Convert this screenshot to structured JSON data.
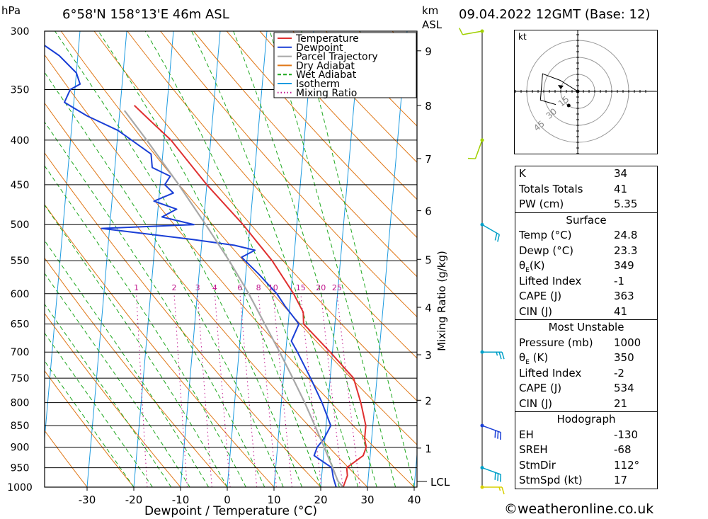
{
  "header": {
    "location": "6°58'N  158°13'E  46m  ASL",
    "datetime": "09.04.2022  12GMT  (Base: 12)",
    "hpa_label": "hPa",
    "km_label": "km",
    "asl_label": "ASL"
  },
  "chart_data": {
    "type": "line",
    "subtype": "skew-T log-P",
    "xlabel": "Dewpoint / Temperature (°C)",
    "ylabel": "hPa",
    "right_ylabel": "Mixing Ratio (g/kg)",
    "xlim": [
      -40,
      40
    ],
    "ylim": [
      1000,
      300
    ],
    "x_ticks": [
      "-30",
      "-20",
      "-10",
      "0",
      "10",
      "20",
      "30",
      "40"
    ],
    "pressure_ticks": [
      "300",
      "350",
      "400",
      "450",
      "500",
      "550",
      "600",
      "650",
      "700",
      "750",
      "800",
      "850",
      "900",
      "950",
      "1000"
    ],
    "km_ticks": [
      {
        "label": "1",
        "p": 902
      },
      {
        "label": "2",
        "p": 795
      },
      {
        "label": "3",
        "p": 705
      },
      {
        "label": "4",
        "p": 622
      },
      {
        "label": "5",
        "p": 548
      },
      {
        "label": "6",
        "p": 482
      },
      {
        "label": "7",
        "p": 420
      },
      {
        "label": "8",
        "p": 365
      },
      {
        "label": "9",
        "p": 316
      }
    ],
    "lcl": {
      "label": "LCL",
      "p": 985
    },
    "mixing_ratio_labels": [
      "1",
      "2",
      "3",
      "4",
      "6",
      "8",
      "10",
      "15",
      "20",
      "25"
    ],
    "legend": [
      "Temperature",
      "Dewpoint",
      "Parcel Trajectory",
      "Dry Adiabat",
      "Wet Adiabat",
      "Isotherm",
      "Mixing Ratio"
    ],
    "legend_position": "top-right",
    "colors": {
      "temperature": "#e03030",
      "dewpoint": "#1a3fd6",
      "parcel": "#a8a8a8",
      "dry_adiabat": "#e07818",
      "wet_adiabat": "#1fa81f",
      "isotherm": "#1e9be0",
      "mixing_ratio": "#c0148c"
    },
    "series": [
      {
        "name": "Temperature",
        "points": [
          [
            1000,
            24.8
          ],
          [
            970,
            25.5
          ],
          [
            950,
            25.2
          ],
          [
            920,
            28.5
          ],
          [
            900,
            29.0
          ],
          [
            880,
            28.5
          ],
          [
            850,
            28.5
          ],
          [
            800,
            27.0
          ],
          [
            750,
            25.0
          ],
          [
            700,
            19.5
          ],
          [
            650,
            13.3
          ],
          [
            630,
            13.0
          ],
          [
            600,
            10.6
          ],
          [
            550,
            5.4
          ],
          [
            500,
            -1.5
          ],
          [
            450,
            -10.0
          ],
          [
            400,
            -18.5
          ],
          [
            380,
            -23.3
          ],
          [
            365,
            -27.0
          ]
        ]
      },
      {
        "name": "Dewpoint",
        "points": [
          [
            1000,
            23.3
          ],
          [
            975,
            22.5
          ],
          [
            950,
            22.0
          ],
          [
            920,
            18.0
          ],
          [
            900,
            18.5
          ],
          [
            880,
            19.8
          ],
          [
            850,
            21.0
          ],
          [
            800,
            18.7
          ],
          [
            750,
            15.8
          ],
          [
            700,
            12.5
          ],
          [
            680,
            11.0
          ],
          [
            650,
            12.3
          ],
          [
            620,
            9.0
          ],
          [
            600,
            7.0
          ],
          [
            570,
            2.8
          ],
          [
            545,
            -1.2
          ],
          [
            535,
            1.5
          ],
          [
            528,
            -3.0
          ],
          [
            520,
            -12.0
          ],
          [
            505,
            -31.7
          ],
          [
            500,
            -12.0
          ],
          [
            490,
            -19.0
          ],
          [
            480,
            -16.0
          ],
          [
            470,
            -21.0
          ],
          [
            460,
            -17.0
          ],
          [
            450,
            -19.0
          ],
          [
            440,
            -18.0
          ],
          [
            430,
            -22.0
          ],
          [
            415,
            -22.5
          ],
          [
            390,
            -30.0
          ],
          [
            375,
            -37.0
          ],
          [
            362,
            -42.0
          ],
          [
            350,
            -41.0
          ],
          [
            345,
            -39.0
          ],
          [
            335,
            -40.0
          ],
          [
            320,
            -44.0
          ],
          [
            300,
            -52.0
          ]
        ]
      },
      {
        "name": "Parcel Trajectory",
        "points": [
          [
            1000,
            24.8
          ],
          [
            985,
            23.6
          ],
          [
            950,
            22.2
          ],
          [
            900,
            20.0
          ],
          [
            850,
            17.6
          ],
          [
            800,
            15.0
          ],
          [
            750,
            12.0
          ],
          [
            700,
            8.7
          ],
          [
            650,
            5.0
          ],
          [
            600,
            1.0
          ],
          [
            550,
            -3.8
          ],
          [
            500,
            -9.5
          ],
          [
            450,
            -16.0
          ],
          [
            400,
            -23.7
          ],
          [
            370,
            -29.0
          ]
        ]
      }
    ],
    "hodograph": {
      "unit_label": "kt",
      "ring_labels": [
        "15",
        "30",
        "45"
      ],
      "trace": [
        [
          0,
          0
        ],
        [
          -8,
          5
        ],
        [
          -16,
          8
        ],
        [
          -17,
          -4
        ],
        [
          -10,
          -6
        ]
      ],
      "storm_motion": {
        "dir": 112,
        "speed": 17
      }
    },
    "wind_barbs": [
      {
        "p": 1000,
        "dir": 90,
        "spd": 15,
        "color": "#d8d000"
      },
      {
        "p": 950,
        "dir": 110,
        "spd": 30,
        "color": "#00a0c8"
      },
      {
        "p": 850,
        "dir": 110,
        "spd": 30,
        "color": "#1a3fd6"
      },
      {
        "p": 700,
        "dir": 90,
        "spd": 25,
        "color": "#00a0c8"
      },
      {
        "p": 500,
        "dir": 120,
        "spd": 20,
        "color": "#00a0c8"
      },
      {
        "p": 400,
        "dir": 200,
        "spd": 10,
        "color": "#a0d000"
      },
      {
        "p": 300,
        "dir": 260,
        "spd": 10,
        "color": "#a0d000"
      }
    ]
  },
  "indices": {
    "k": {
      "label": "K",
      "value": "34"
    },
    "tt": {
      "label": "Totals Totals",
      "value": "41"
    },
    "pw": {
      "label": "PW (cm)",
      "value": "5.35"
    }
  },
  "surface": {
    "title": "Surface",
    "temp": {
      "label": "Temp (°C)",
      "value": "24.8"
    },
    "dewp": {
      "label": "Dewp (°C)",
      "value": "23.3"
    },
    "theta": {
      "label": "θ",
      "sub": "E",
      "unit": "(K)",
      "value": "349"
    },
    "li": {
      "label": "Lifted Index",
      "value": "-1"
    },
    "cape": {
      "label": "CAPE (J)",
      "value": "363"
    },
    "cin": {
      "label": "CIN (J)",
      "value": "41"
    }
  },
  "most_unstable": {
    "title": "Most Unstable",
    "pressure": {
      "label": "Pressure (mb)",
      "value": "1000"
    },
    "theta": {
      "label": "θ",
      "sub": "E",
      "unit": " (K)",
      "value": "350"
    },
    "li": {
      "label": "Lifted Index",
      "value": "-2"
    },
    "cape": {
      "label": "CAPE (J)",
      "value": "534"
    },
    "cin": {
      "label": "CIN (J)",
      "value": "21"
    }
  },
  "hodograph_table": {
    "title": "Hodograph",
    "eh": {
      "label": "EH",
      "value": "-130"
    },
    "sreh": {
      "label": "SREH",
      "value": "-68"
    },
    "stmdir": {
      "label": "StmDir",
      "value": "112°"
    },
    "stmspd": {
      "label": "StmSpd (kt)",
      "value": "17"
    }
  },
  "footer": {
    "copyright": "©weatheronline.co.uk"
  }
}
